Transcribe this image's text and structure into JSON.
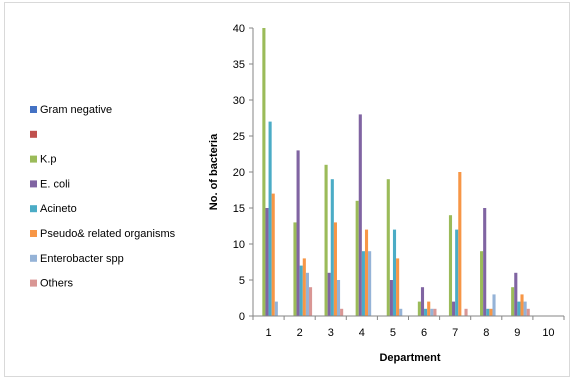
{
  "chart_data": {
    "type": "bar",
    "title": "",
    "xlabel": "Department",
    "ylabel": "No. of bacteria",
    "ylim": [
      0,
      40
    ],
    "yticks": [
      0,
      5,
      10,
      15,
      20,
      25,
      30,
      35,
      40
    ],
    "categories": [
      "1",
      "2",
      "3",
      "4",
      "5",
      "6",
      "7",
      "8",
      "9",
      "10"
    ],
    "grid": false,
    "legend_position": "left",
    "series": [
      {
        "name": "Gram negative",
        "color": "#4472c4",
        "values": [
          0,
          0,
          0,
          0,
          0,
          0,
          0,
          0,
          0,
          0
        ]
      },
      {
        "name": "",
        "color": "#c0504d",
        "values": [
          0,
          0,
          0,
          0,
          0,
          0,
          0,
          0,
          0,
          0
        ]
      },
      {
        "name": "K.p",
        "color": "#9bbb59",
        "values": [
          40,
          13,
          21,
          16,
          19,
          2,
          14,
          9,
          4,
          0
        ]
      },
      {
        "name": "E. coli",
        "color": "#8064a2",
        "values": [
          15,
          23,
          6,
          28,
          5,
          4,
          2,
          15,
          6,
          0
        ]
      },
      {
        "name": "Acineto",
        "color": "#4bacc6",
        "values": [
          27,
          7,
          19,
          9,
          12,
          1,
          12,
          1,
          2,
          0
        ]
      },
      {
        "name": "Pseudo& related organisms",
        "color": "#f79646",
        "values": [
          17,
          8,
          13,
          12,
          8,
          2,
          20,
          1,
          3,
          0
        ]
      },
      {
        "name": "Enterobacter spp",
        "color": "#95b3d7",
        "values": [
          2,
          6,
          5,
          9,
          1,
          1,
          0,
          3,
          2,
          0
        ]
      },
      {
        "name": "Others",
        "color": "#d99694",
        "values": [
          0,
          4,
          1,
          0,
          0,
          1,
          1,
          0,
          1,
          0
        ]
      }
    ]
  }
}
